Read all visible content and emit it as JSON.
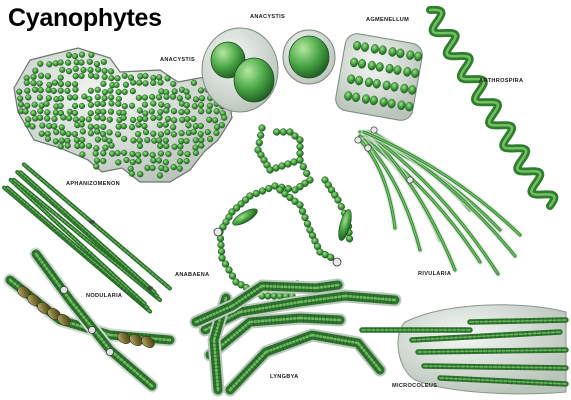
{
  "title": "Cyanophytes",
  "labels": {
    "anacystis_colony": "ANACYSTIS",
    "anacystis_cells": "ANACYSTIS",
    "agmenellum": "AGMENELLUM",
    "arthrospira": "ARTHROSPIRA",
    "aphanizomenon": "APHANIZOMENON",
    "anabaena": "ANABAENA",
    "rivularia": "RIVULARIA",
    "nodularia": "NODULARIA",
    "lyngbya": "LYNGBYA",
    "microcoleus": "MICROCOLEUS"
  },
  "colors": {
    "cell_green": "#3e9a3a",
    "dark_green": "#2a6e2a",
    "light_green": "#8ccc78",
    "sheath": "#cfd8d0",
    "outline": "#5a6e5a"
  }
}
